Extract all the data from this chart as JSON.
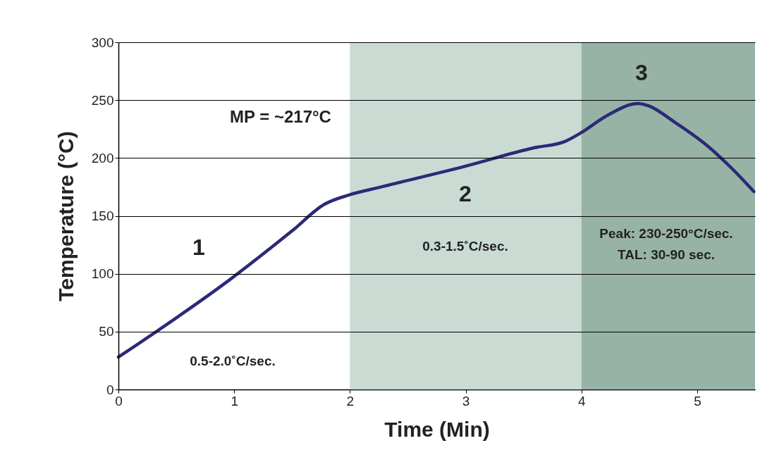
{
  "chart_data": {
    "type": "line",
    "xlabel": "Time (Min)",
    "ylabel": "Temperature (°C)",
    "xlim": [
      0,
      5.5
    ],
    "xticks": [
      0,
      1,
      2,
      3,
      4,
      5
    ],
    "ylim": [
      0,
      300
    ],
    "yticks": [
      0,
      50,
      100,
      150,
      200,
      250,
      300
    ],
    "grid": "y",
    "marker": "none",
    "line_style": "solid",
    "series": [
      {
        "color": "#2b2a78",
        "x": [
          0,
          0.99,
          1.5,
          1.78,
          1.99,
          2.27,
          3.0,
          3.6,
          3.85,
          4.0,
          4.21,
          4.49,
          4.55,
          4.82,
          5.07,
          5.31,
          5.49
        ],
        "values": [
          28,
          97,
          137,
          160,
          168,
          175,
          193,
          209,
          214,
          222,
          236,
          247,
          246,
          230,
          212,
          190,
          171
        ]
      }
    ],
    "bands": [
      {
        "axis": "x",
        "from": 2,
        "to": 4,
        "color": "#c9dbd3"
      },
      {
        "axis": "x",
        "from": 4,
        "to": 5.5,
        "color": "#97b3a5"
      }
    ],
    "annotations": [
      "MP = ~217°C",
      "1",
      "0.5-2.0˚C/sec.",
      "2",
      "0.3-1.5˚C/sec.",
      "3",
      "Peak: 230-250°C/sec.",
      "TAL: 30-90 sec."
    ]
  }
}
